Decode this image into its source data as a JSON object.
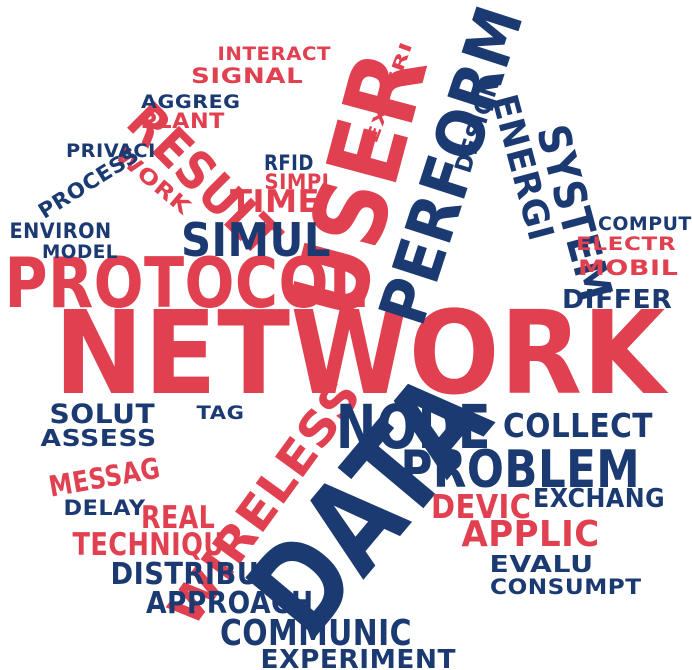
{
  "colors": {
    "red": "#e0404f",
    "blue": "#1b3a72"
  },
  "words": [
    {
      "key": "network",
      "text": "NETWORK",
      "color": "red"
    },
    {
      "key": "data",
      "text": "DATA",
      "color": "blue"
    },
    {
      "key": "user",
      "text": "USER",
      "color": "red"
    },
    {
      "key": "perform",
      "text": "PERFORM",
      "color": "blue"
    },
    {
      "key": "protocol",
      "text": "PROTOCOL",
      "color": "red"
    },
    {
      "key": "wireless",
      "text": "WIRELESS",
      "color": "red"
    },
    {
      "key": "result",
      "text": "RESULT",
      "color": "red"
    },
    {
      "key": "node",
      "text": "NODE",
      "color": "blue"
    },
    {
      "key": "problem",
      "text": "PROBLEM",
      "color": "blue"
    },
    {
      "key": "system",
      "text": "SYSTEM",
      "color": "blue"
    },
    {
      "key": "energi",
      "text": "ENERGI",
      "color": "blue"
    },
    {
      "key": "simul",
      "text": "SIMUL",
      "color": "blue"
    },
    {
      "key": "communic",
      "text": "COMMUNIC",
      "color": "blue"
    },
    {
      "key": "collect",
      "text": "COLLECT",
      "color": "blue"
    },
    {
      "key": "applic",
      "text": "APPLIC",
      "color": "red"
    },
    {
      "key": "devic",
      "text": "DEVIC",
      "color": "red"
    },
    {
      "key": "techniqu",
      "text": "TECHNIQU",
      "color": "red"
    },
    {
      "key": "real",
      "text": "REAL",
      "color": "red"
    },
    {
      "key": "time",
      "text": "TIME",
      "color": "red"
    },
    {
      "key": "messag",
      "text": "MESSAG",
      "color": "red"
    },
    {
      "key": "approach",
      "text": "APPROACH",
      "color": "blue"
    },
    {
      "key": "distribut",
      "text": "DISTRIBUT",
      "color": "blue"
    },
    {
      "key": "experiment",
      "text": "EXPERIMENT",
      "color": "blue"
    },
    {
      "key": "solut",
      "text": "SOLUT",
      "color": "blue"
    },
    {
      "key": "assess",
      "text": "ASSESS",
      "color": "blue"
    },
    {
      "key": "exchang",
      "text": "EXCHANG",
      "color": "blue"
    },
    {
      "key": "evalu",
      "text": "EVALU",
      "color": "blue"
    },
    {
      "key": "consumpt",
      "text": "CONSUMPT",
      "color": "blue"
    },
    {
      "key": "differ",
      "text": "DIFFER",
      "color": "blue"
    },
    {
      "key": "design",
      "text": "DESIGN",
      "color": "blue"
    },
    {
      "key": "work",
      "text": "WORK",
      "color": "red"
    },
    {
      "key": "process",
      "text": "PROCESS",
      "color": "blue"
    },
    {
      "key": "environ",
      "text": "ENVIRON",
      "color": "blue"
    },
    {
      "key": "model",
      "text": "MODEL",
      "color": "blue"
    },
    {
      "key": "privaci",
      "text": "PRIVACI",
      "color": "blue"
    },
    {
      "key": "aggreg",
      "text": "AGGREG",
      "color": "blue"
    },
    {
      "key": "plant",
      "text": "PLANT",
      "color": "red"
    },
    {
      "key": "signal",
      "text": "SIGNAL",
      "color": "red"
    },
    {
      "key": "interact",
      "text": "INTERACT",
      "color": "red"
    },
    {
      "key": "experi",
      "text": "EXPERI",
      "color": "red"
    },
    {
      "key": "rfid",
      "text": "RFID",
      "color": "blue"
    },
    {
      "key": "simpl",
      "text": "SIMPL",
      "color": "red"
    },
    {
      "key": "comput",
      "text": "COMPUT",
      "color": "blue"
    },
    {
      "key": "electr",
      "text": "ELECTR",
      "color": "red"
    },
    {
      "key": "mobil",
      "text": "MOBIL",
      "color": "red"
    },
    {
      "key": "tag",
      "text": "TAG",
      "color": "blue"
    },
    {
      "key": "delay",
      "text": "DELAY",
      "color": "blue"
    }
  ]
}
